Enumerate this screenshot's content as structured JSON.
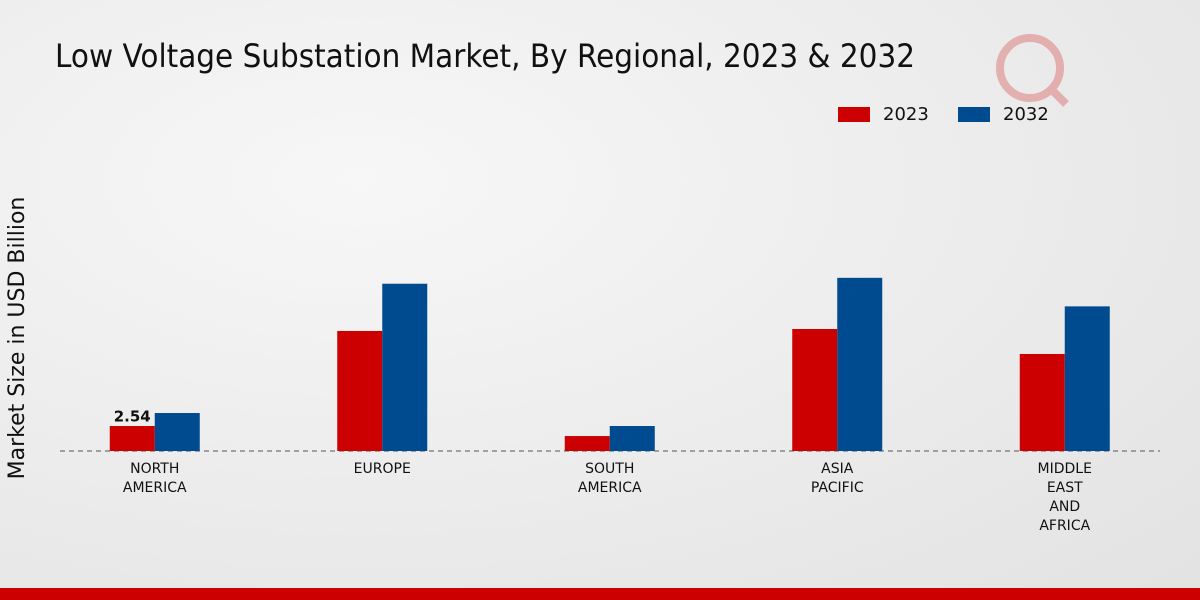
{
  "chart_data": {
    "type": "bar",
    "title": "Low Voltage Substation Market, By Regional, 2023 & 2032",
    "y_label": "Market Size in USD Billion",
    "categories": [
      "NORTH AMERICA",
      "EUROPE",
      "SOUTH AMERICA",
      "ASIA PACIFIC",
      "MIDDLE EAST AND AFRICA"
    ],
    "series": [
      {
        "name": "2023",
        "color": "#cc0000",
        "values": [
          2.54,
          12.2,
          1.52,
          12.4,
          9.86
        ]
      },
      {
        "name": "2032",
        "color": "#004a8f",
        "values": [
          3.86,
          17.0,
          2.54,
          17.6,
          14.7
        ]
      }
    ],
    "ylim": [
      0,
      28
    ],
    "legend": "top-right"
  }
}
